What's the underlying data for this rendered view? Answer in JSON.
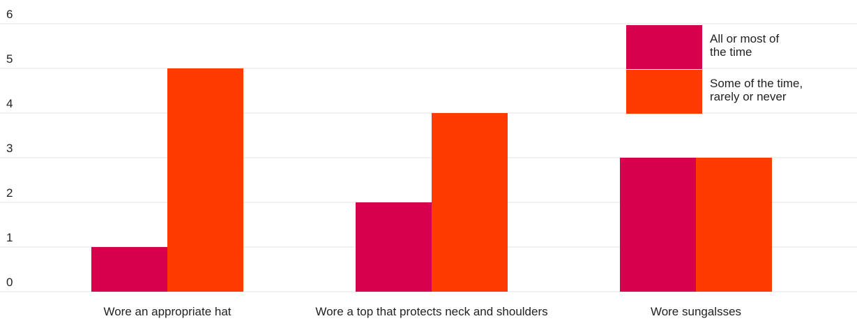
{
  "chart_data": {
    "type": "bar",
    "categories": [
      "Wore an appropriate hat",
      "Wore a top that protects neck and shoulders",
      "Wore sungalsses"
    ],
    "series": [
      {
        "name": "All or most of the time",
        "name_lines": [
          "All or most of",
          "the time"
        ],
        "color": "#d6004c",
        "values": [
          1,
          2,
          3
        ]
      },
      {
        "name": "Some of the time, rarely or never",
        "name_lines": [
          "Some of the time,",
          "rarely or never"
        ],
        "color": "#ff3b00",
        "values": [
          5,
          4,
          3
        ]
      }
    ],
    "ylim": [
      0,
      6
    ],
    "yticks": [
      "0",
      "1",
      "2",
      "3",
      "4",
      "5",
      "6"
    ],
    "grid": true,
    "legend_position": "top-right",
    "title": "",
    "xlabel": "",
    "ylabel": ""
  }
}
